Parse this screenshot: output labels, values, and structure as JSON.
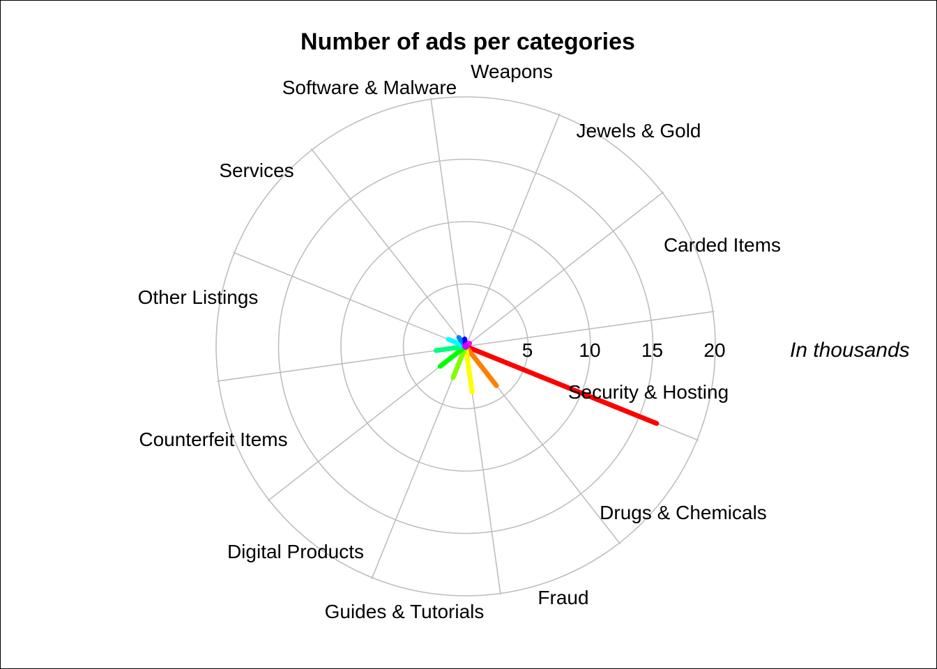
{
  "chart_data": {
    "type": "radial-bar",
    "title": "Number of ads per categories",
    "unit_label": "In thousands",
    "radial_ticks": [
      "5",
      "10",
      "15",
      "20"
    ],
    "tick_values": [
      5,
      10,
      15,
      20
    ],
    "rlim": [
      0,
      20
    ],
    "grid": true,
    "categories": [
      {
        "label": "Security & Hosting",
        "value": 0.05,
        "color": "#7f00ff"
      },
      {
        "label": "Drugs & Chemicals",
        "value": 16.5,
        "color": "#ff0000"
      },
      {
        "label": "Fraud",
        "value": 4.0,
        "color": "#ff8000"
      },
      {
        "label": "Guides & Tutorials",
        "value": 3.7,
        "color": "#ffff00"
      },
      {
        "label": "Digital Products",
        "value": 2.7,
        "color": "#80ff00"
      },
      {
        "label": "Counterfeit Items",
        "value": 2.6,
        "color": "#00ff00"
      },
      {
        "label": "Other Listings",
        "value": 2.4,
        "color": "#00ff80"
      },
      {
        "label": "Services",
        "value": 1.5,
        "color": "#00ffff"
      },
      {
        "label": "Software & Malware",
        "value": 0.9,
        "color": "#0080ff"
      },
      {
        "label": "Weapons",
        "value": 0.6,
        "color": "#0000ff"
      },
      {
        "label": "Jewels & Gold",
        "value": 0.1,
        "color": "#8000ff"
      },
      {
        "label": "Carded Items",
        "value": 0.4,
        "color": "#ff00ff"
      }
    ]
  }
}
